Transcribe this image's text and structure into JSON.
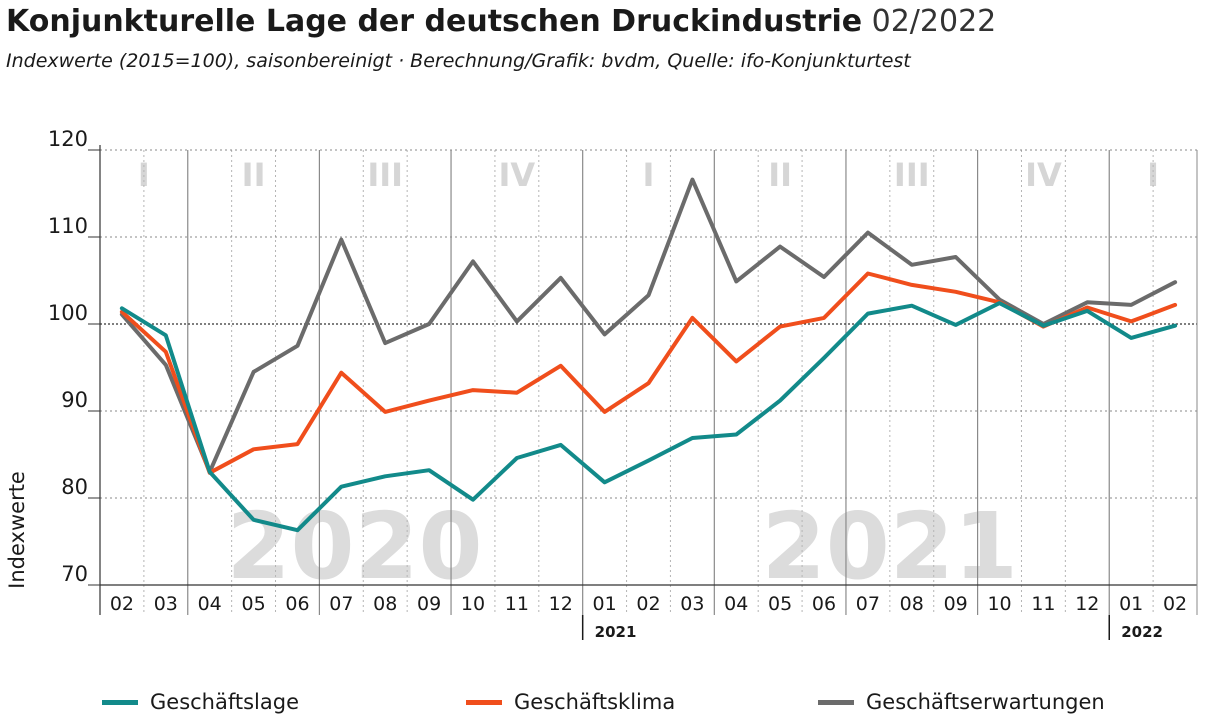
{
  "header": {
    "title": "Konjunkturelle Lage der deutschen Druckindustrie",
    "date": "02/2022",
    "subtitle": "Indexwerte (2015=100), saisonbereinigt · Berechnung/Grafik: bvdm, Quelle: ifo-Konjunkturtest"
  },
  "chart_data": {
    "type": "line",
    "ylabel": "Indexwerte",
    "ylim": [
      70,
      120
    ],
    "yticks": [
      70,
      80,
      90,
      100,
      110,
      120
    ],
    "categories": [
      "02",
      "03",
      "04",
      "05",
      "06",
      "07",
      "08",
      "09",
      "10",
      "11",
      "12",
      "01",
      "02",
      "03",
      "04",
      "05",
      "06",
      "07",
      "08",
      "09",
      "10",
      "11",
      "12",
      "01",
      "02"
    ],
    "year_labels": [
      {
        "index": 11,
        "label": "2021"
      },
      {
        "index": 23,
        "label": "2022"
      }
    ],
    "quarters": [
      {
        "label": "I",
        "start": 0,
        "end": 2
      },
      {
        "label": "II",
        "start": 2,
        "end": 5
      },
      {
        "label": "III",
        "start": 5,
        "end": 8
      },
      {
        "label": "IV",
        "start": 8,
        "end": 11
      },
      {
        "label": "I",
        "start": 11,
        "end": 14
      },
      {
        "label": "II",
        "start": 14,
        "end": 17
      },
      {
        "label": "III",
        "start": 17,
        "end": 20
      },
      {
        "label": "IV",
        "start": 20,
        "end": 23
      },
      {
        "label": "I",
        "start": 23,
        "end": 25
      }
    ],
    "watermarks": [
      {
        "label": "2020",
        "center": 5.3
      },
      {
        "label": "2021",
        "center": 17.5
      }
    ],
    "series": [
      {
        "name": "Geschäftslage",
        "color": "#128a8a",
        "values": [
          101.8,
          98.7,
          83.0,
          77.5,
          76.3,
          81.3,
          82.5,
          83.2,
          79.8,
          84.6,
          86.1,
          81.8,
          84.3,
          86.9,
          87.3,
          91.2,
          96.1,
          101.2,
          102.1,
          99.9,
          102.4,
          99.8,
          101.5,
          98.4,
          99.8
        ]
      },
      {
        "name": "Geschäftsklima",
        "color": "#f04e1c",
        "values": [
          101.4,
          96.8,
          82.9,
          85.6,
          86.2,
          94.4,
          89.9,
          91.2,
          92.4,
          92.1,
          95.2,
          89.9,
          93.2,
          100.7,
          95.7,
          99.7,
          100.7,
          105.8,
          104.5,
          103.7,
          102.5,
          99.7,
          101.9,
          100.3,
          102.2
        ]
      },
      {
        "name": "Geschäftserwartungen",
        "color": "#6b6b6b",
        "values": [
          101.1,
          95.3,
          83.0,
          94.5,
          97.5,
          109.7,
          97.8,
          100.0,
          107.2,
          100.3,
          105.3,
          98.8,
          103.3,
          116.6,
          104.9,
          108.9,
          105.4,
          110.5,
          106.8,
          107.7,
          102.8,
          100.0,
          102.5,
          102.2,
          104.8
        ]
      }
    ]
  }
}
